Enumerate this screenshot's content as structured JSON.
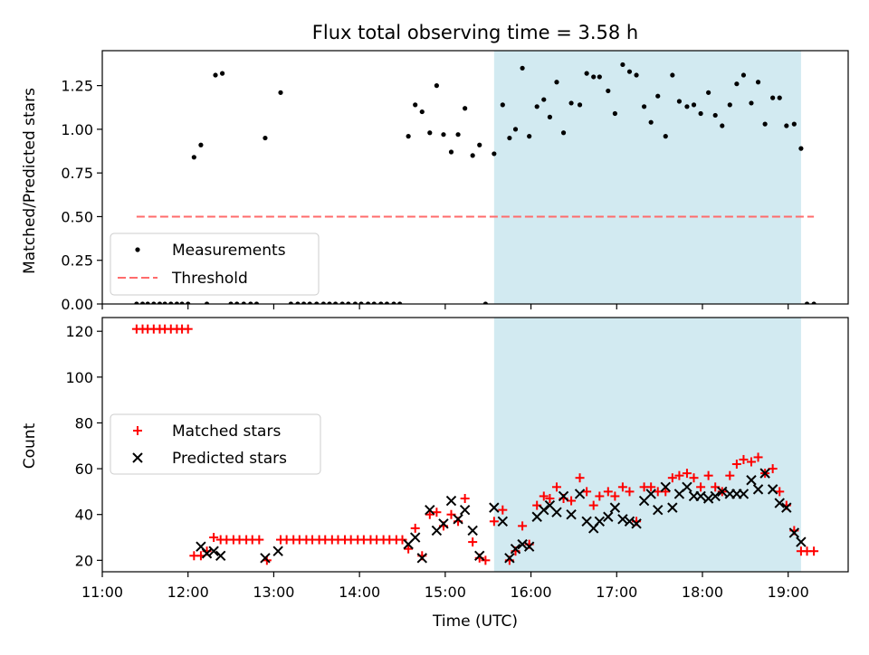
{
  "title": "Flux total observing time = 3.58 h",
  "xaxis": {
    "label": "Time (UTC)",
    "range_hours": [
      11.0,
      19.7
    ],
    "ticks": [
      {
        "value": 11,
        "label": "11:00"
      },
      {
        "value": 12,
        "label": "12:00"
      },
      {
        "value": 13,
        "label": "13:00"
      },
      {
        "value": 14,
        "label": "14:00"
      },
      {
        "value": 15,
        "label": "15:00"
      },
      {
        "value": 16,
        "label": "16:00"
      },
      {
        "value": 17,
        "label": "17:00"
      },
      {
        "value": 18,
        "label": "18:00"
      },
      {
        "value": 19,
        "label": "19:00"
      }
    ]
  },
  "colors": {
    "measurement": "#000000",
    "threshold": "#ff6b6b",
    "matched": "#ff0000",
    "predicted": "#000000",
    "band": "#add8e6"
  },
  "chart_data": [
    {
      "type": "scatter",
      "ylabel": "Matched/Predicted stars",
      "ylim": [
        0,
        1.45
      ],
      "yticks": [
        {
          "value": 0,
          "label": "0.00"
        },
        {
          "value": 0.25,
          "label": "0.25"
        },
        {
          "value": 0.5,
          "label": "0.50"
        },
        {
          "value": 0.75,
          "label": "0.75"
        },
        {
          "value": 1.0,
          "label": "1.00"
        },
        {
          "value": 1.25,
          "label": "1.25"
        }
      ],
      "band": [
        15.57,
        19.15
      ],
      "legend": {
        "position": "lower-left",
        "entries": [
          "Measurements",
          "Threshold"
        ]
      },
      "threshold": {
        "name": "Threshold",
        "value": 0.5,
        "x_range": [
          11.4,
          19.3
        ]
      },
      "series": [
        {
          "name": "Measurements",
          "x": [
            11.4,
            11.47,
            11.53,
            11.6,
            11.67,
            11.73,
            11.8,
            11.87,
            11.93,
            12.0,
            12.07,
            12.15,
            12.22,
            12.32,
            12.4,
            12.5,
            12.57,
            12.65,
            12.73,
            12.8,
            12.9,
            13.08,
            13.2,
            13.28,
            13.35,
            13.42,
            13.5,
            13.58,
            13.65,
            13.72,
            13.8,
            13.87,
            13.95,
            14.02,
            14.1,
            14.17,
            14.25,
            14.32,
            14.4,
            14.47,
            14.57,
            14.65,
            14.73,
            14.82,
            14.9,
            14.98,
            15.07,
            15.15,
            15.23,
            15.32,
            15.4,
            15.47,
            15.57,
            15.67,
            15.75,
            15.82,
            15.9,
            15.98,
            16.07,
            16.15,
            16.22,
            16.3,
            16.38,
            16.47,
            16.57,
            16.65,
            16.73,
            16.8,
            16.9,
            16.98,
            17.07,
            17.15,
            17.23,
            17.32,
            17.4,
            17.48,
            17.57,
            17.65,
            17.73,
            17.82,
            17.9,
            17.98,
            18.07,
            18.15,
            18.23,
            18.32,
            18.4,
            18.48,
            18.57,
            18.65,
            18.73,
            18.82,
            18.9,
            18.98,
            19.07,
            19.15,
            19.22,
            19.3
          ],
          "y": [
            0,
            0,
            0,
            0,
            0,
            0,
            0,
            0,
            0,
            0,
            0.84,
            0.91,
            0,
            1.31,
            1.32,
            0,
            0,
            0,
            0,
            0,
            0.95,
            1.21,
            0,
            0,
            0,
            0,
            0,
            0,
            0,
            0,
            0,
            0,
            0,
            0,
            0,
            0,
            0,
            0,
            0,
            0,
            0.96,
            1.14,
            1.1,
            0.98,
            1.25,
            0.97,
            0.87,
            0.97,
            1.12,
            0.85,
            0.91,
            0,
            0.86,
            1.14,
            0.95,
            1.0,
            1.35,
            0.96,
            1.13,
            1.17,
            1.07,
            1.27,
            0.98,
            1.15,
            1.14,
            1.32,
            1.3,
            1.3,
            1.22,
            1.09,
            1.37,
            1.33,
            1.31,
            1.13,
            1.04,
            1.19,
            0.96,
            1.31,
            1.16,
            1.13,
            1.14,
            1.09,
            1.21,
            1.08,
            1.02,
            1.14,
            1.26,
            1.31,
            1.15,
            1.27,
            1.03,
            1.18,
            1.18,
            1.02,
            1.03,
            0.89,
            0,
            0
          ]
        }
      ]
    },
    {
      "type": "scatter",
      "xlabel": "Time (UTC)",
      "ylabel": "Count",
      "ylim": [
        15,
        126
      ],
      "yticks": [
        {
          "value": 20,
          "label": "20"
        },
        {
          "value": 40,
          "label": "40"
        },
        {
          "value": 60,
          "label": "60"
        },
        {
          "value": 80,
          "label": "80"
        },
        {
          "value": 100,
          "label": "100"
        },
        {
          "value": 120,
          "label": "120"
        }
      ],
      "band": [
        15.57,
        19.15
      ],
      "legend": {
        "position": "center-left",
        "entries": [
          "Matched stars",
          "Predicted stars"
        ]
      },
      "series": [
        {
          "name": "Matched stars",
          "x": [
            11.4,
            11.47,
            11.53,
            11.6,
            11.67,
            11.73,
            11.8,
            11.87,
            11.93,
            12.0,
            12.07,
            12.15,
            12.22,
            12.3,
            12.38,
            12.45,
            12.53,
            12.6,
            12.68,
            12.75,
            12.83,
            12.92,
            13.08,
            13.15,
            13.23,
            13.3,
            13.38,
            13.45,
            13.53,
            13.6,
            13.68,
            13.75,
            13.83,
            13.9,
            13.98,
            14.05,
            14.13,
            14.2,
            14.28,
            14.35,
            14.43,
            14.5,
            14.57,
            14.65,
            14.73,
            14.82,
            14.9,
            14.98,
            15.07,
            15.15,
            15.23,
            15.32,
            15.4,
            15.47,
            15.57,
            15.67,
            15.75,
            15.82,
            15.9,
            15.98,
            16.07,
            16.15,
            16.22,
            16.3,
            16.38,
            16.47,
            16.57,
            16.65,
            16.73,
            16.8,
            16.9,
            16.98,
            17.07,
            17.15,
            17.23,
            17.32,
            17.4,
            17.48,
            17.57,
            17.65,
            17.73,
            17.82,
            17.9,
            17.98,
            18.07,
            18.15,
            18.23,
            18.32,
            18.4,
            18.48,
            18.57,
            18.65,
            18.73,
            18.82,
            18.9,
            18.98,
            19.07,
            19.15,
            19.22,
            19.3
          ],
          "y": [
            121,
            121,
            121,
            121,
            121,
            121,
            121,
            121,
            121,
            121,
            22,
            22,
            24,
            30,
            29,
            29,
            29,
            29,
            29,
            29,
            29,
            20,
            29,
            29,
            29,
            29,
            29,
            29,
            29,
            29,
            29,
            29,
            29,
            29,
            29,
            29,
            29,
            29,
            29,
            29,
            29,
            29,
            25,
            34,
            22,
            40,
            41,
            35,
            40,
            37,
            47,
            28,
            21,
            20,
            37,
            42,
            20,
            24,
            35,
            27,
            44,
            48,
            47,
            52,
            47,
            46,
            56,
            50,
            44,
            48,
            50,
            48,
            52,
            50,
            37,
            52,
            52,
            50,
            50,
            56,
            57,
            58,
            56,
            52,
            57,
            52,
            50,
            57,
            62,
            64,
            63,
            65,
            58,
            60,
            50,
            44,
            33,
            24,
            24,
            24
          ]
        },
        {
          "name": "Predicted stars",
          "x": [
            12.15,
            12.22,
            12.3,
            12.38,
            12.9,
            13.05,
            14.57,
            14.65,
            14.73,
            14.82,
            14.9,
            14.98,
            15.07,
            15.15,
            15.23,
            15.32,
            15.4,
            15.57,
            15.67,
            15.75,
            15.82,
            15.9,
            15.98,
            16.07,
            16.15,
            16.22,
            16.3,
            16.38,
            16.47,
            16.57,
            16.65,
            16.73,
            16.8,
            16.9,
            16.98,
            17.07,
            17.15,
            17.23,
            17.32,
            17.4,
            17.48,
            17.57,
            17.65,
            17.73,
            17.82,
            17.9,
            17.98,
            18.07,
            18.15,
            18.23,
            18.32,
            18.4,
            18.48,
            18.57,
            18.65,
            18.73,
            18.82,
            18.9,
            18.98,
            19.07,
            19.15
          ],
          "y": [
            26,
            23,
            24,
            22,
            21,
            24,
            27,
            30,
            21,
            42,
            33,
            36,
            46,
            38,
            42,
            33,
            22,
            43,
            37,
            21,
            25,
            27,
            26,
            39,
            42,
            44,
            41,
            48,
            40,
            49,
            37,
            34,
            37,
            39,
            43,
            38,
            37,
            36,
            46,
            49,
            42,
            52,
            43,
            49,
            52,
            48,
            48,
            47,
            48,
            50,
            49,
            49,
            49,
            55,
            51,
            58,
            51,
            45,
            43,
            32,
            28
          ]
        }
      ]
    }
  ]
}
